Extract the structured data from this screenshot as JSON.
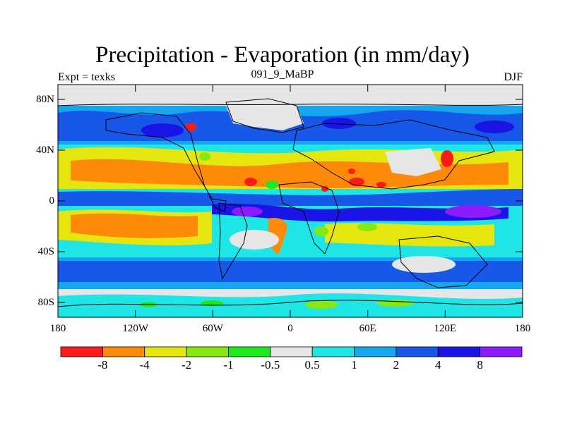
{
  "title": "Precipitation - Evaporation (in mm/day)",
  "subtitle_left": "Expt = texks",
  "subtitle_center": "091_9_MaBP",
  "subtitle_right": "DJF",
  "lat_ticks": [
    "80N",
    "40N",
    "0",
    "40S",
    "80S"
  ],
  "lon_ticks": [
    "180",
    "120W",
    "60W",
    "0",
    "60E",
    "120E",
    "180"
  ],
  "colorbar": {
    "colors": [
      "#ff1a1a",
      "#ff8a0a",
      "#e6e60f",
      "#86e80f",
      "#1ee81e",
      "#e6e6e6",
      "#1fe6e6",
      "#15a6f0",
      "#1758e8",
      "#1a14e6",
      "#8c1cff"
    ],
    "labels": [
      "-8",
      "-4",
      "-2",
      "-1",
      "-0.5",
      "0.5",
      "1",
      "2",
      "4",
      "8"
    ]
  },
  "colors": {
    "land_outline": "#000000",
    "frame": "#000000"
  }
}
